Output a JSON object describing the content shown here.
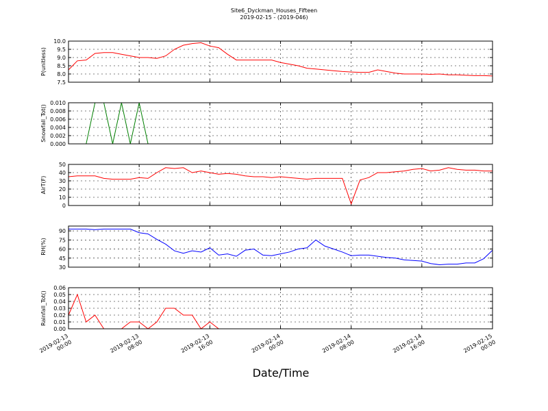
{
  "figure": {
    "title": "Site6_Dyckman_Houses_Fifteen",
    "subtitle": "2019-02-15 - (2019-046)",
    "xlabel": "Date/Time"
  },
  "chart_data": [
    {
      "type": "line",
      "ylabel": "P(unitless)",
      "color": "#ff0000",
      "x": [
        "2019-02-13 00:00",
        "2019-02-13 01:00",
        "2019-02-13 02:00",
        "2019-02-13 03:00",
        "2019-02-13 04:00",
        "2019-02-13 05:00",
        "2019-02-13 06:00",
        "2019-02-13 07:00",
        "2019-02-13 08:00",
        "2019-02-13 09:00",
        "2019-02-13 10:00",
        "2019-02-13 11:00",
        "2019-02-13 12:00",
        "2019-02-13 13:00",
        "2019-02-13 14:00",
        "2019-02-13 15:00",
        "2019-02-13 16:00",
        "2019-02-13 17:00",
        "2019-02-13 18:00",
        "2019-02-13 19:00",
        "2019-02-13 20:00",
        "2019-02-13 21:00",
        "2019-02-13 22:00",
        "2019-02-13 23:00",
        "2019-02-14 00:00",
        "2019-02-14 01:00",
        "2019-02-14 02:00",
        "2019-02-14 03:00",
        "2019-02-14 04:00",
        "2019-02-14 05:00",
        "2019-02-14 06:00",
        "2019-02-14 07:00",
        "2019-02-14 08:00",
        "2019-02-14 09:00",
        "2019-02-14 10:00",
        "2019-02-14 11:00",
        "2019-02-14 12:00",
        "2019-02-14 13:00",
        "2019-02-14 14:00",
        "2019-02-14 15:00",
        "2019-02-14 16:00",
        "2019-02-14 17:00",
        "2019-02-14 18:00",
        "2019-02-14 19:00",
        "2019-02-14 20:00",
        "2019-02-14 21:00",
        "2019-02-14 22:00",
        "2019-02-14 23:00",
        "2019-02-15 00:00"
      ],
      "values": [
        8.25,
        8.8,
        8.85,
        9.25,
        9.3,
        9.3,
        9.2,
        9.1,
        9.0,
        9.0,
        8.95,
        9.1,
        9.5,
        9.75,
        9.85,
        9.9,
        9.7,
        9.6,
        9.2,
        8.85,
        8.85,
        8.85,
        8.85,
        8.85,
        8.7,
        8.6,
        8.5,
        8.35,
        8.3,
        8.25,
        8.2,
        8.15,
        8.12,
        8.1,
        8.1,
        8.25,
        8.15,
        8.05,
        8.0,
        8.0,
        8.0,
        7.98,
        8.0,
        7.95,
        7.95,
        7.92,
        7.9,
        7.9,
        7.88
      ],
      "xlim": [
        "2019-02-13 00:00",
        "2019-02-15 00:00"
      ],
      "ylim": [
        7.5,
        10
      ],
      "yticks": [
        7.5,
        {
          "value": 8,
          "label": "8.0"
        },
        8.5,
        {
          "value": 9,
          "label": "9.0"
        },
        9.5,
        {
          "value": 10,
          "label": "10.0"
        }
      ],
      "grid": true
    },
    {
      "type": "line",
      "ylabel": "Snowfall_Tot()",
      "color": "#007f00",
      "x": [
        "2019-02-13 00:00",
        "2019-02-13 01:00",
        "2019-02-13 02:00",
        "2019-02-13 03:00",
        "2019-02-13 04:00",
        "2019-02-13 05:00",
        "2019-02-13 06:00",
        "2019-02-13 07:00",
        "2019-02-13 08:00",
        "2019-02-13 09:00",
        "2019-02-13 10:00",
        "2019-02-13 11:00",
        "2019-02-13 12:00",
        "2019-02-13 13:00",
        "2019-02-13 14:00",
        "2019-02-13 15:00",
        "2019-02-13 16:00",
        "2019-02-13 17:00",
        "2019-02-13 18:00",
        "2019-02-13 19:00",
        "2019-02-13 20:00",
        "2019-02-13 21:00",
        "2019-02-13 22:00",
        "2019-02-13 23:00",
        "2019-02-14 00:00",
        "2019-02-14 01:00",
        "2019-02-14 02:00",
        "2019-02-14 03:00",
        "2019-02-14 04:00",
        "2019-02-14 05:00",
        "2019-02-14 06:00",
        "2019-02-14 07:00",
        "2019-02-14 08:00",
        "2019-02-14 09:00",
        "2019-02-14 10:00",
        "2019-02-14 11:00",
        "2019-02-14 12:00",
        "2019-02-14 13:00",
        "2019-02-14 14:00",
        "2019-02-14 15:00",
        "2019-02-14 16:00",
        "2019-02-14 17:00",
        "2019-02-14 18:00",
        "2019-02-14 19:00",
        "2019-02-14 20:00",
        "2019-02-14 21:00",
        "2019-02-14 22:00",
        "2019-02-14 23:00",
        "2019-02-15 00:00"
      ],
      "values": [
        0,
        0,
        0,
        0.01,
        0.01,
        0,
        0.01,
        0,
        0.01,
        0,
        0,
        0,
        0,
        0,
        0,
        0,
        0,
        0,
        0,
        0,
        0,
        0,
        0,
        0,
        0,
        0,
        0,
        0,
        0,
        0,
        0,
        0,
        0,
        0,
        0,
        0,
        0,
        0,
        0,
        0,
        0,
        0,
        0,
        0,
        0,
        0,
        0,
        0,
        0
      ],
      "xlim": [
        "2019-02-13 00:00",
        "2019-02-15 00:00"
      ],
      "ylim": [
        0,
        0.01
      ],
      "yticks": [
        {
          "value": 0,
          "label": "0.000"
        },
        {
          "value": 0.002,
          "label": "0.002"
        },
        {
          "value": 0.004,
          "label": "0.004"
        },
        {
          "value": 0.006,
          "label": "0.006"
        },
        {
          "value": 0.008,
          "label": "0.008"
        },
        {
          "value": 0.01,
          "label": "0.010"
        }
      ],
      "grid": true
    },
    {
      "type": "line",
      "ylabel": "AirT(F)",
      "color": "#ff0000",
      "x": [
        "2019-02-13 00:00",
        "2019-02-13 01:00",
        "2019-02-13 02:00",
        "2019-02-13 03:00",
        "2019-02-13 04:00",
        "2019-02-13 05:00",
        "2019-02-13 06:00",
        "2019-02-13 07:00",
        "2019-02-13 08:00",
        "2019-02-13 09:00",
        "2019-02-13 10:00",
        "2019-02-13 11:00",
        "2019-02-13 12:00",
        "2019-02-13 13:00",
        "2019-02-13 14:00",
        "2019-02-13 15:00",
        "2019-02-13 16:00",
        "2019-02-13 17:00",
        "2019-02-13 18:00",
        "2019-02-13 19:00",
        "2019-02-13 20:00",
        "2019-02-13 21:00",
        "2019-02-13 22:00",
        "2019-02-13 23:00",
        "2019-02-14 00:00",
        "2019-02-14 01:00",
        "2019-02-14 02:00",
        "2019-02-14 03:00",
        "2019-02-14 04:00",
        "2019-02-14 05:00",
        "2019-02-14 06:00",
        "2019-02-14 07:00",
        "2019-02-14 08:00",
        "2019-02-14 09:00",
        "2019-02-14 10:00",
        "2019-02-14 11:00",
        "2019-02-14 12:00",
        "2019-02-14 13:00",
        "2019-02-14 14:00",
        "2019-02-14 15:00",
        "2019-02-14 16:00",
        "2019-02-14 17:00",
        "2019-02-14 18:00",
        "2019-02-14 19:00",
        "2019-02-14 20:00",
        "2019-02-14 21:00",
        "2019-02-14 22:00",
        "2019-02-14 23:00",
        "2019-02-15 00:00"
      ],
      "values": [
        35,
        36,
        36,
        36,
        33,
        32,
        32,
        32,
        34,
        33,
        40,
        46,
        45,
        46,
        40,
        42,
        40,
        38,
        39,
        38,
        36,
        35,
        35,
        34,
        35,
        34,
        33,
        32,
        33,
        33,
        33,
        33,
        2,
        31,
        34,
        40,
        40,
        41,
        42,
        44,
        45,
        42,
        43,
        46,
        44,
        43,
        43,
        42,
        42
      ],
      "xlim": [
        "2019-02-13 00:00",
        "2019-02-15 00:00"
      ],
      "ylim": [
        0,
        50
      ],
      "yticks": [
        0,
        10,
        20,
        30,
        40,
        50
      ],
      "grid": true
    },
    {
      "type": "line",
      "ylabel": "RH(%)",
      "color": "#0000ff",
      "x": [
        "2019-02-13 00:00",
        "2019-02-13 01:00",
        "2019-02-13 02:00",
        "2019-02-13 03:00",
        "2019-02-13 04:00",
        "2019-02-13 05:00",
        "2019-02-13 06:00",
        "2019-02-13 07:00",
        "2019-02-13 08:00",
        "2019-02-13 09:00",
        "2019-02-13 10:00",
        "2019-02-13 11:00",
        "2019-02-13 12:00",
        "2019-02-13 13:00",
        "2019-02-13 14:00",
        "2019-02-13 15:00",
        "2019-02-13 16:00",
        "2019-02-13 17:00",
        "2019-02-13 18:00",
        "2019-02-13 19:00",
        "2019-02-13 20:00",
        "2019-02-13 21:00",
        "2019-02-13 22:00",
        "2019-02-13 23:00",
        "2019-02-14 00:00",
        "2019-02-14 01:00",
        "2019-02-14 02:00",
        "2019-02-14 03:00",
        "2019-02-14 04:00",
        "2019-02-14 05:00",
        "2019-02-14 06:00",
        "2019-02-14 07:00",
        "2019-02-14 08:00",
        "2019-02-14 09:00",
        "2019-02-14 10:00",
        "2019-02-14 11:00",
        "2019-02-14 12:00",
        "2019-02-14 13:00",
        "2019-02-14 14:00",
        "2019-02-14 15:00",
        "2019-02-14 16:00",
        "2019-02-14 17:00",
        "2019-02-14 18:00",
        "2019-02-14 19:00",
        "2019-02-14 20:00",
        "2019-02-14 21:00",
        "2019-02-14 22:00",
        "2019-02-14 23:00",
        "2019-02-15 00:00"
      ],
      "values": [
        93,
        93,
        93,
        92,
        93,
        93,
        93,
        93,
        87,
        85,
        76,
        68,
        57,
        53,
        57,
        55,
        62,
        50,
        52,
        48,
        58,
        60,
        50,
        49,
        52,
        55,
        60,
        62,
        75,
        65,
        60,
        55,
        49,
        50,
        50,
        48,
        46,
        45,
        42,
        41,
        40,
        36,
        34,
        35,
        35,
        37,
        37,
        44,
        58
      ],
      "xlim": [
        "2019-02-13 00:00",
        "2019-02-15 00:00"
      ],
      "ylim": [
        30,
        98
      ],
      "yticks": [
        30,
        45,
        60,
        75,
        90
      ],
      "grid": true
    },
    {
      "type": "line",
      "ylabel": "Rainfall_Tot()",
      "color": "#ff0000",
      "x": [
        "2019-02-13 00:00",
        "2019-02-13 01:00",
        "2019-02-13 02:00",
        "2019-02-13 03:00",
        "2019-02-13 04:00",
        "2019-02-13 05:00",
        "2019-02-13 06:00",
        "2019-02-13 07:00",
        "2019-02-13 08:00",
        "2019-02-13 09:00",
        "2019-02-13 10:00",
        "2019-02-13 11:00",
        "2019-02-13 12:00",
        "2019-02-13 13:00",
        "2019-02-13 14:00",
        "2019-02-13 15:00",
        "2019-02-13 16:00",
        "2019-02-13 17:00",
        "2019-02-13 18:00",
        "2019-02-13 19:00",
        "2019-02-13 20:00",
        "2019-02-13 21:00",
        "2019-02-13 22:00",
        "2019-02-13 23:00",
        "2019-02-14 00:00",
        "2019-02-14 01:00",
        "2019-02-14 02:00",
        "2019-02-14 03:00",
        "2019-02-14 04:00",
        "2019-02-14 05:00",
        "2019-02-14 06:00",
        "2019-02-14 07:00",
        "2019-02-14 08:00",
        "2019-02-14 09:00",
        "2019-02-14 10:00",
        "2019-02-14 11:00",
        "2019-02-14 12:00",
        "2019-02-14 13:00",
        "2019-02-14 14:00",
        "2019-02-14 15:00",
        "2019-02-14 16:00",
        "2019-02-14 17:00",
        "2019-02-14 18:00",
        "2019-02-14 19:00",
        "2019-02-14 20:00",
        "2019-02-14 21:00",
        "2019-02-14 22:00",
        "2019-02-14 23:00",
        "2019-02-15 00:00"
      ],
      "values": [
        0.02,
        0.05,
        0.01,
        0.02,
        0,
        0,
        0,
        0.01,
        0.01,
        0,
        0.01,
        0.03,
        0.03,
        0.02,
        0.02,
        0,
        0.01,
        0,
        0,
        0,
        0,
        0,
        0,
        0,
        0,
        0,
        0,
        0,
        0,
        0,
        0,
        0,
        0,
        0,
        0,
        0,
        0,
        0,
        0,
        0,
        0,
        0,
        0,
        0,
        0,
        0,
        0,
        0,
        0
      ],
      "xlim": [
        "2019-02-13 00:00",
        "2019-02-15 00:00"
      ],
      "ylim": [
        0,
        0.06
      ],
      "xticks": [
        "2019-02-13 00:00",
        "2019-02-13 08:00",
        "2019-02-13 16:00",
        "2019-02-14 00:00",
        "2019-02-14 08:00",
        "2019-02-14 16:00",
        "2019-02-15 00:00"
      ],
      "yticks": [
        {
          "value": 0,
          "label": "0.00"
        },
        {
          "value": 0.01,
          "label": "0.01"
        },
        {
          "value": 0.02,
          "label": "0.02"
        },
        {
          "value": 0.03,
          "label": "0.03"
        },
        {
          "value": 0.04,
          "label": "0.04"
        },
        {
          "value": 0.05,
          "label": "0.05"
        },
        {
          "value": 0.06,
          "label": "0.06"
        }
      ],
      "grid": true
    }
  ]
}
